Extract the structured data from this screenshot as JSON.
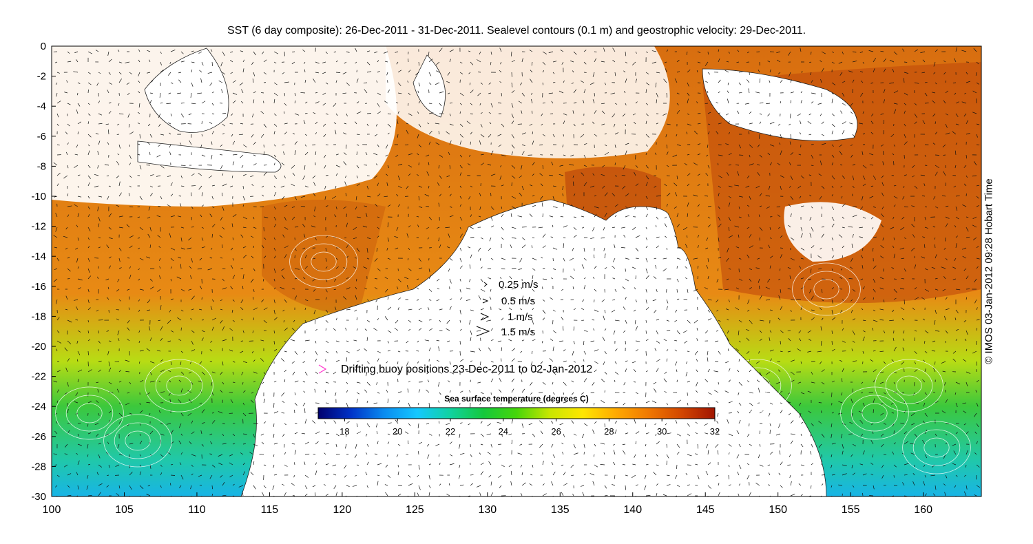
{
  "title": "SST (6 day composite): 26-Dec-2011 - 31-Dec-2011. Sealevel contours (0.1 m) and geostrophic velocity: 29-Dec-2011.",
  "credit": "© IMOS 03-Jan-2012 09:28 Hobart Time",
  "map": {
    "lon_range": [
      100,
      164
    ],
    "lat_range": [
      -30,
      0
    ],
    "x_ticks": [
      100,
      105,
      110,
      115,
      120,
      125,
      130,
      135,
      140,
      145,
      150,
      155,
      160
    ],
    "y_ticks": [
      0,
      -2,
      -4,
      -6,
      -8,
      -10,
      -12,
      -14,
      -16,
      -18,
      -20,
      -22,
      -24,
      -26,
      -28,
      -30
    ]
  },
  "velocity_legend": {
    "entries": [
      {
        "label": "0.25 m/s",
        "speed": 0.25
      },
      {
        "label": "0.5 m/s",
        "speed": 0.5
      },
      {
        "label": "1 m/s",
        "speed": 1
      },
      {
        "label": "1.5 m/s",
        "speed": 1.5
      }
    ]
  },
  "buoy_legend": {
    "label": "Drifting buoy positions 23-Dec-2011 to 02-Jan-2012",
    "color": "#ff33cc"
  },
  "colorbar": {
    "title": "Sea surface temperature (degrees C)",
    "range": [
      17,
      32
    ],
    "ticks": [
      18,
      20,
      22,
      24,
      26,
      28,
      30,
      32
    ],
    "colors": [
      "#00006e",
      "#0033c8",
      "#0a8cf0",
      "#14c8ff",
      "#10d2a0",
      "#14c83c",
      "#46d60a",
      "#c8e600",
      "#ffe600",
      "#ffaa00",
      "#f07800",
      "#d24600",
      "#a01400"
    ]
  }
}
